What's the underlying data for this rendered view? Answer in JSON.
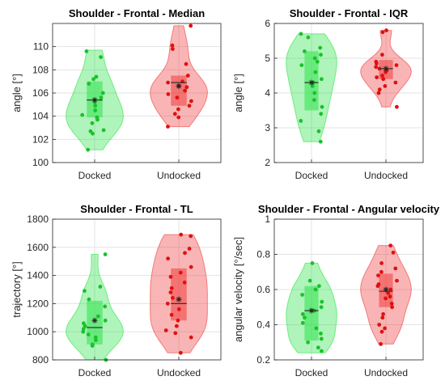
{
  "figure": {
    "colors": {
      "docked": "#2ee24a",
      "undocked": "#f03c3c",
      "dot_docked": "#19c22b",
      "dot_undocked": "#e01010"
    }
  },
  "chart_data": [
    {
      "type": "violin",
      "title": "Shoulder - Frontal - Median",
      "ylabel": "angle [°]",
      "xlabel": "",
      "categories": [
        "Docked",
        "Undocked"
      ],
      "ylim": [
        100,
        112
      ],
      "yticks": [
        100,
        102,
        104,
        106,
        108,
        110
      ],
      "grid": true,
      "series": [
        {
          "points": [
            109.6,
            109.1,
            107.4,
            107.2,
            106.8,
            106.0,
            105.6,
            105.2,
            104.9,
            104.5,
            104.1,
            103.9,
            103.7,
            103.4,
            102.8,
            102.7,
            102.5,
            101.1
          ],
          "q1": 103.9,
          "median": 105.4,
          "q3": 107.0,
          "mean": 105.4,
          "min": 101.9,
          "max": 109.7
        },
        {
          "points": [
            111.8,
            110.1,
            109.8,
            108.5,
            107.5,
            107.0,
            106.9,
            106.6,
            106.5,
            106.2,
            105.9,
            105.6,
            105.3,
            104.9,
            104.6,
            104.2,
            103.9,
            103.1
          ],
          "q1": 104.9,
          "median": 106.9,
          "q3": 107.5,
          "mean": 106.6,
          "min": 103.1,
          "max": 111.8
        }
      ]
    },
    {
      "type": "violin",
      "title": "Shoulder - Frontal - IQR",
      "ylabel": "angle [°]",
      "xlabel": "",
      "categories": [
        "Docked",
        "Undocked"
      ],
      "ylim": [
        2,
        6
      ],
      "yticks": [
        2,
        3,
        4,
        5,
        6
      ],
      "grid": true,
      "series": [
        {
          "points": [
            5.7,
            5.6,
            5.3,
            5.2,
            5.1,
            5.0,
            4.9,
            4.8,
            4.6,
            4.4,
            4.3,
            4.2,
            4.0,
            3.8,
            3.6,
            3.4,
            3.2,
            2.9,
            2.6
          ],
          "q1": 3.5,
          "median": 4.3,
          "q3": 5.2,
          "mean": 4.3,
          "min": 2.8,
          "max": 5.7
        },
        {
          "points": [
            5.8,
            5.75,
            5.1,
            4.9,
            4.85,
            4.8,
            4.75,
            4.7,
            4.65,
            4.6,
            4.5,
            4.45,
            4.4,
            4.3,
            4.2,
            4.1,
            4.0,
            3.6
          ],
          "q1": 4.4,
          "median": 4.7,
          "q3": 4.95,
          "mean": 4.7,
          "min": 3.9,
          "max": 5.8
        }
      ]
    },
    {
      "type": "violin",
      "title": "Shoulder - Frontal - TL",
      "ylabel": "trajectory [°]",
      "xlabel": "",
      "categories": [
        "Docked",
        "Undocked"
      ],
      "ylim": [
        800,
        1800
      ],
      "yticks": [
        800,
        1000,
        1200,
        1400,
        1600,
        1800
      ],
      "grid": true,
      "series": [
        {
          "points": [
            1550,
            1320,
            1290,
            1230,
            1180,
            1110,
            1080,
            1060,
            1040,
            1020,
            1000,
            980,
            960,
            940,
            910,
            900,
            800
          ],
          "q1": 910,
          "median": 1030,
          "q3": 1220,
          "mean": 1080,
          "min": 820,
          "max": 1430
        },
        {
          "points": [
            1690,
            1680,
            1590,
            1560,
            1520,
            1460,
            1420,
            1390,
            1350,
            1310,
            1280,
            1240,
            1200,
            1160,
            1120,
            1080,
            1040,
            1010,
            990,
            960,
            850
          ],
          "q1": 1080,
          "median": 1200,
          "q3": 1450,
          "mean": 1230,
          "min": 920,
          "max": 1690
        }
      ]
    },
    {
      "type": "violin",
      "title": "Shoulder - Frontal - Angular velocity",
      "ylabel": "angular velocity [°/sec]",
      "xlabel": "",
      "categories": [
        "Docked",
        "Undocked"
      ],
      "ylim": [
        0.2,
        1.0
      ],
      "yticks": [
        0.2,
        0.4,
        0.6,
        0.8,
        1.0
      ],
      "grid": true,
      "series": [
        {
          "points": [
            0.75,
            0.65,
            0.62,
            0.6,
            0.57,
            0.53,
            0.5,
            0.48,
            0.46,
            0.44,
            0.41,
            0.38,
            0.35,
            0.32,
            0.3,
            0.27,
            0.25
          ],
          "q1": 0.31,
          "median": 0.48,
          "q3": 0.62,
          "mean": 0.48,
          "min": 0.24,
          "max": 0.72
        },
        {
          "points": [
            0.85,
            0.81,
            0.75,
            0.72,
            0.7,
            0.68,
            0.65,
            0.63,
            0.62,
            0.6,
            0.58,
            0.56,
            0.55,
            0.52,
            0.5,
            0.46,
            0.44,
            0.4,
            0.38,
            0.36,
            0.29
          ],
          "q1": 0.5,
          "median": 0.59,
          "q3": 0.69,
          "mean": 0.6,
          "min": 0.32,
          "max": 0.84
        }
      ]
    }
  ]
}
